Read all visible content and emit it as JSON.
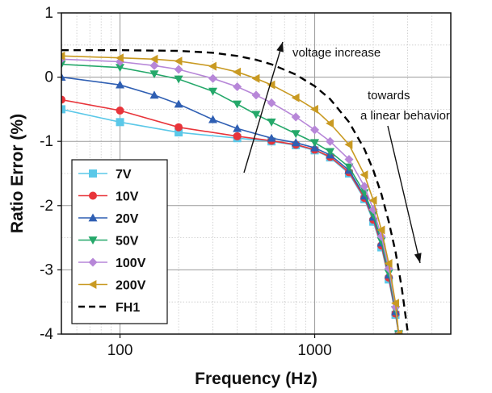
{
  "chart_data": {
    "type": "line",
    "xlabel": "Frequency (Hz)",
    "ylabel": "Ratio Error (%)",
    "xscale": "log",
    "xlim": [
      50,
      5000
    ],
    "ylim": [
      -4,
      1
    ],
    "xticks": [
      100,
      1000
    ],
    "xtick_labels": [
      "100",
      "1000"
    ],
    "yticks": [
      1,
      0,
      -1,
      -2,
      -3,
      -4
    ],
    "ytick_labels": [
      "1",
      "0",
      "-1",
      "-2",
      "-3",
      "-4"
    ],
    "grid": true,
    "legend_position": "bottom-left",
    "colors": {
      "7V": "#5bc8e8",
      "10V": "#e8343a",
      "20V": "#2f5fb3",
      "50V": "#25a86a",
      "100V": "#b787d8",
      "200V": "#c99a22",
      "FH1": "#000000"
    },
    "series": [
      {
        "name": "7V",
        "marker": "square",
        "x": [
          50,
          100,
          200,
          400,
          600,
          800,
          1000,
          1200,
          1500,
          1800,
          2000,
          2200,
          2400,
          2600,
          2700
        ],
        "y": [
          -0.5,
          -0.7,
          -0.86,
          -0.95,
          -1.0,
          -1.06,
          -1.14,
          -1.25,
          -1.5,
          -1.9,
          -2.25,
          -2.65,
          -3.15,
          -3.7,
          -4.0
        ]
      },
      {
        "name": "10V",
        "marker": "circle",
        "x": [
          50,
          100,
          200,
          400,
          600,
          800,
          1000,
          1200,
          1500,
          1800,
          2000,
          2200,
          2400,
          2600,
          2700
        ],
        "y": [
          -0.35,
          -0.52,
          -0.78,
          -0.92,
          -0.99,
          -1.05,
          -1.13,
          -1.24,
          -1.48,
          -1.88,
          -2.22,
          -2.62,
          -3.12,
          -3.68,
          -4.0
        ]
      },
      {
        "name": "20V",
        "marker": "triangle-up",
        "x": [
          50,
          100,
          150,
          200,
          300,
          400,
          600,
          800,
          1000,
          1200,
          1500,
          1800,
          2000,
          2200,
          2400,
          2600,
          2700
        ],
        "y": [
          0.0,
          -0.12,
          -0.28,
          -0.42,
          -0.66,
          -0.8,
          -0.95,
          -1.02,
          -1.1,
          -1.21,
          -1.45,
          -1.85,
          -2.18,
          -2.58,
          -3.08,
          -3.65,
          -4.0
        ]
      },
      {
        "name": "50V",
        "marker": "triangle-down",
        "x": [
          50,
          100,
          150,
          200,
          300,
          400,
          500,
          600,
          800,
          1000,
          1200,
          1500,
          1800,
          2000,
          2200,
          2400,
          2600,
          2700
        ],
        "y": [
          0.2,
          0.15,
          0.05,
          -0.03,
          -0.22,
          -0.42,
          -0.58,
          -0.7,
          -0.88,
          -1.02,
          -1.16,
          -1.4,
          -1.8,
          -2.14,
          -2.55,
          -3.05,
          -3.62,
          -4.0
        ]
      },
      {
        "name": "100V",
        "marker": "diamond",
        "x": [
          50,
          100,
          150,
          200,
          300,
          400,
          500,
          600,
          800,
          1000,
          1200,
          1500,
          1800,
          2000,
          2200,
          2400,
          2600,
          2700
        ],
        "y": [
          0.28,
          0.24,
          0.18,
          0.12,
          -0.02,
          -0.15,
          -0.28,
          -0.4,
          -0.62,
          -0.82,
          -1.0,
          -1.28,
          -1.7,
          -2.06,
          -2.48,
          -2.98,
          -3.58,
          -4.0
        ]
      },
      {
        "name": "200V",
        "marker": "triangle-left",
        "x": [
          50,
          100,
          150,
          200,
          300,
          400,
          500,
          600,
          800,
          1000,
          1200,
          1500,
          1800,
          2000,
          2200,
          2400,
          2600,
          2700
        ],
        "y": [
          0.33,
          0.3,
          0.28,
          0.25,
          0.17,
          0.08,
          -0.02,
          -0.12,
          -0.32,
          -0.5,
          -0.72,
          -1.05,
          -1.52,
          -1.92,
          -2.38,
          -2.9,
          -3.52,
          -4.0
        ]
      },
      {
        "name": "FH1",
        "marker": "none",
        "dashed": true,
        "x": [
          50,
          100,
          200,
          300,
          400,
          500,
          600,
          800,
          1000,
          1200,
          1500,
          1800,
          2000,
          2200,
          2400,
          2600,
          2800,
          3000
        ],
        "y": [
          0.42,
          0.42,
          0.41,
          0.38,
          0.33,
          0.27,
          0.2,
          0.04,
          -0.14,
          -0.34,
          -0.7,
          -1.12,
          -1.45,
          -1.82,
          -2.25,
          -2.72,
          -3.28,
          -3.95
        ]
      }
    ],
    "annotations": [
      {
        "text": "voltage increase"
      },
      {
        "text": "towards"
      },
      {
        "text": "a linear behavior"
      }
    ]
  }
}
